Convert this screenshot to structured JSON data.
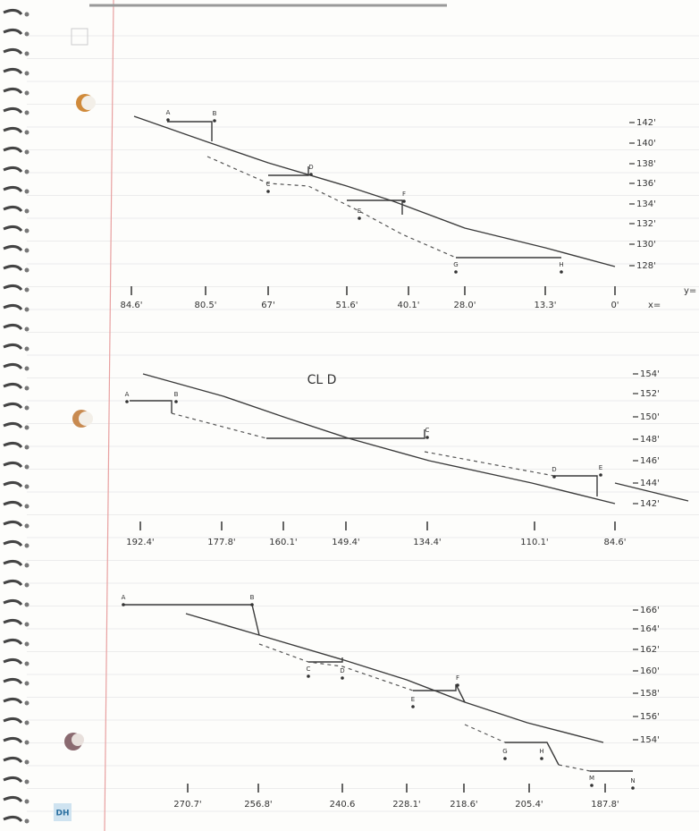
{
  "profiles": [
    {
      "stations": [
        "84.6'",
        "80.5'",
        "67'",
        "51.6'",
        "40.1'",
        "28.0'",
        "13.3'",
        "0'"
      ],
      "elevations": [
        "142'",
        "140'",
        "138'",
        "136'",
        "134'",
        "132'",
        "130'",
        "128'"
      ],
      "axis_notes": [
        "x=",
        "y="
      ],
      "point_labels": [
        "A",
        "B",
        "C",
        "D",
        "E",
        "F",
        "G",
        "H"
      ]
    },
    {
      "title": "CL D",
      "stations": [
        "192.4'",
        "177.8'",
        "160.1'",
        "149.4'",
        "134.4'",
        "110.1'",
        "84.6'"
      ],
      "elevations": [
        "154'",
        "152'",
        "150'",
        "148'",
        "146'",
        "144'",
        "142'"
      ],
      "point_labels": [
        "A",
        "B",
        "C",
        "D",
        "E"
      ]
    },
    {
      "stations": [
        "270.7'",
        "256.8'",
        "240.6",
        "228.1'",
        "218.6'",
        "205.4'",
        "187.8'"
      ],
      "elevations": [
        "166'",
        "164'",
        "162'",
        "160'",
        "158'",
        "156'",
        "154'"
      ],
      "point_labels": [
        "A",
        "B",
        "C",
        "D",
        "E",
        "F",
        "G",
        "H",
        "M",
        "N"
      ]
    }
  ],
  "stamp": "DH"
}
